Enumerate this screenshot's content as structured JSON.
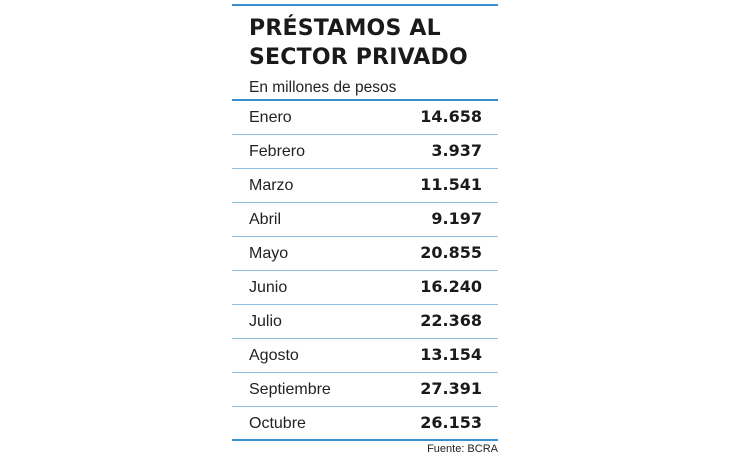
{
  "chart_data": {
    "type": "table",
    "title": "PRÉSTAMOS AL SECTOR PRIVADO",
    "title_lines": [
      "PRÉSTAMOS AL",
      "SECTOR PRIVADO"
    ],
    "subtitle": "En millones de pesos",
    "categories": [
      "Enero",
      "Febrero",
      "Marzo",
      "Abril",
      "Mayo",
      "Junio",
      "Julio",
      "Agosto",
      "Septiembre",
      "Octubre"
    ],
    "values": [
      14658,
      3937,
      11541,
      9197,
      20855,
      16240,
      22368,
      13154,
      27391,
      26153
    ],
    "value_labels": [
      "14.658",
      "3.937",
      "11.541",
      "9.197",
      "20.855",
      "16.240",
      "22.368",
      "13.154",
      "27.391",
      "26.153"
    ],
    "source": "Fuente: BCRA"
  },
  "colors": {
    "accent_rule": "#3a8fd0",
    "row_divider": "#8fc0e4",
    "text": "#1c1c1c"
  }
}
